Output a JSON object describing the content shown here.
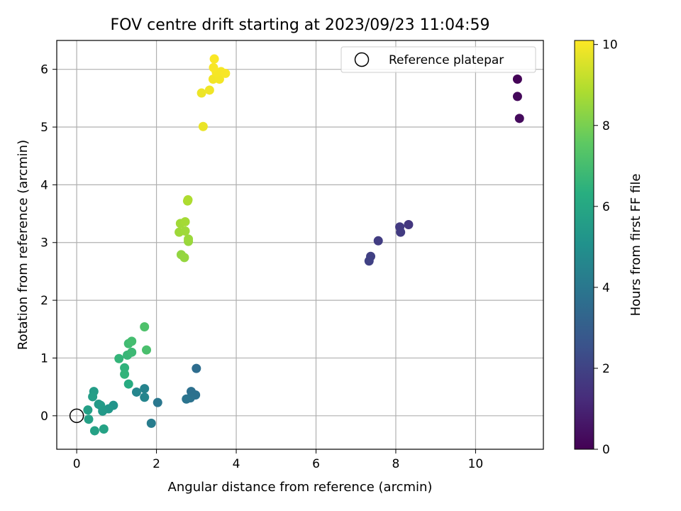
{
  "chart_data": {
    "type": "scatter",
    "title": "FOV centre drift starting at 2023/09/23 11:04:59",
    "xlabel": "Angular distance from reference (arcmin)",
    "ylabel": "Rotation from reference (arcmin)",
    "xlim": [
      -0.5,
      11.7
    ],
    "ylim": [
      -0.58,
      6.5
    ],
    "xticks": [
      0,
      2,
      4,
      6,
      8,
      10
    ],
    "yticks": [
      0,
      1,
      2,
      3,
      4,
      5,
      6
    ],
    "grid": true,
    "colormap": "viridis",
    "colorbar": {
      "label": "Hours from first FF file",
      "min": 0,
      "max": 10.1,
      "ticks": [
        0,
        2,
        4,
        6,
        8,
        10
      ]
    },
    "legend": {
      "position": "top-right",
      "entries": [
        "Reference platepar"
      ]
    },
    "reference_point": {
      "x": 0,
      "y": 0
    },
    "points": [
      {
        "x": 11.05,
        "y": 5.83,
        "hours": 0.1
      },
      {
        "x": 11.05,
        "y": 5.53,
        "hours": 0.2
      },
      {
        "x": 11.1,
        "y": 5.15,
        "hours": 0.3
      },
      {
        "x": 8.32,
        "y": 3.31,
        "hours": 1.6
      },
      {
        "x": 8.1,
        "y": 3.27,
        "hours": 1.7
      },
      {
        "x": 8.12,
        "y": 3.18,
        "hours": 1.75
      },
      {
        "x": 7.56,
        "y": 3.03,
        "hours": 1.8
      },
      {
        "x": 7.37,
        "y": 2.76,
        "hours": 1.9
      },
      {
        "x": 7.33,
        "y": 2.68,
        "hours": 1.95
      },
      {
        "x": 3.0,
        "y": 0.82,
        "hours": 3.6
      },
      {
        "x": 2.87,
        "y": 0.42,
        "hours": 3.7
      },
      {
        "x": 2.98,
        "y": 0.36,
        "hours": 3.75
      },
      {
        "x": 2.85,
        "y": 0.31,
        "hours": 3.8
      },
      {
        "x": 2.75,
        "y": 0.29,
        "hours": 3.85
      },
      {
        "x": 2.03,
        "y": 0.23,
        "hours": 4.0
      },
      {
        "x": 1.87,
        "y": -0.13,
        "hours": 4.2
      },
      {
        "x": 1.7,
        "y": 0.47,
        "hours": 4.5
      },
      {
        "x": 1.7,
        "y": 0.32,
        "hours": 4.55
      },
      {
        "x": 1.5,
        "y": 0.41,
        "hours": 4.6
      },
      {
        "x": 0.92,
        "y": 0.18,
        "hours": 5.2
      },
      {
        "x": 0.8,
        "y": 0.12,
        "hours": 5.3
      },
      {
        "x": 0.65,
        "y": 0.08,
        "hours": 5.4
      },
      {
        "x": 0.6,
        "y": 0.18,
        "hours": 5.45
      },
      {
        "x": 0.55,
        "y": 0.2,
        "hours": 5.5
      },
      {
        "x": 0.43,
        "y": 0.42,
        "hours": 5.55
      },
      {
        "x": 0.4,
        "y": 0.33,
        "hours": 5.6
      },
      {
        "x": 0.28,
        "y": 0.1,
        "hours": 5.65
      },
      {
        "x": 0.3,
        "y": -0.06,
        "hours": 5.7
      },
      {
        "x": 0.45,
        "y": -0.26,
        "hours": 5.75
      },
      {
        "x": 0.68,
        "y": -0.23,
        "hours": 5.8
      },
      {
        "x": 1.3,
        "y": 0.55,
        "hours": 6.2
      },
      {
        "x": 1.2,
        "y": 0.83,
        "hours": 6.5
      },
      {
        "x": 1.2,
        "y": 0.72,
        "hours": 6.55
      },
      {
        "x": 1.06,
        "y": 0.99,
        "hours": 6.6
      },
      {
        "x": 1.27,
        "y": 1.05,
        "hours": 6.7
      },
      {
        "x": 1.38,
        "y": 1.1,
        "hours": 6.8
      },
      {
        "x": 1.3,
        "y": 1.25,
        "hours": 6.9
      },
      {
        "x": 1.38,
        "y": 1.29,
        "hours": 7.0
      },
      {
        "x": 1.75,
        "y": 1.14,
        "hours": 7.1
      },
      {
        "x": 1.7,
        "y": 1.54,
        "hours": 7.2
      },
      {
        "x": 2.62,
        "y": 2.79,
        "hours": 8.4
      },
      {
        "x": 2.7,
        "y": 2.74,
        "hours": 8.45
      },
      {
        "x": 2.8,
        "y": 3.02,
        "hours": 8.5
      },
      {
        "x": 2.8,
        "y": 3.06,
        "hours": 8.55
      },
      {
        "x": 2.57,
        "y": 3.18,
        "hours": 8.6
      },
      {
        "x": 2.72,
        "y": 3.2,
        "hours": 8.62
      },
      {
        "x": 2.6,
        "y": 3.33,
        "hours": 8.65
      },
      {
        "x": 2.72,
        "y": 3.36,
        "hours": 8.7
      },
      {
        "x": 2.78,
        "y": 3.72,
        "hours": 8.8
      },
      {
        "x": 2.79,
        "y": 3.74,
        "hours": 8.85
      },
      {
        "x": 3.17,
        "y": 5.01,
        "hours": 9.8
      },
      {
        "x": 3.13,
        "y": 5.59,
        "hours": 9.85
      },
      {
        "x": 3.33,
        "y": 5.64,
        "hours": 9.9
      },
      {
        "x": 3.42,
        "y": 5.83,
        "hours": 9.92
      },
      {
        "x": 3.58,
        "y": 5.83,
        "hours": 9.95
      },
      {
        "x": 3.5,
        "y": 5.95,
        "hours": 9.97
      },
      {
        "x": 3.62,
        "y": 5.96,
        "hours": 9.98
      },
      {
        "x": 3.73,
        "y": 5.93,
        "hours": 10.0
      },
      {
        "x": 3.43,
        "y": 6.03,
        "hours": 10.02
      },
      {
        "x": 3.45,
        "y": 6.18,
        "hours": 10.05
      }
    ]
  }
}
